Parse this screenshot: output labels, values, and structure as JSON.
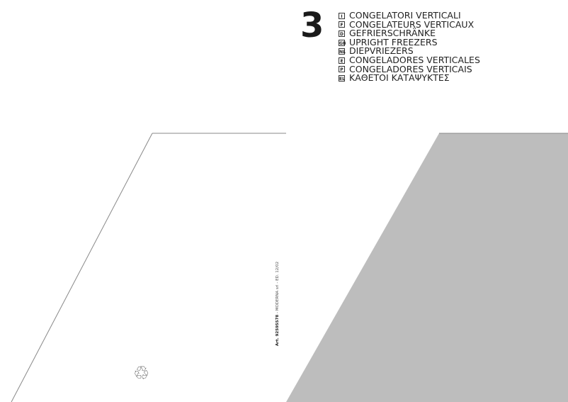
{
  "cover": {
    "number": "3",
    "titles": [
      {
        "code": "I",
        "text": "CONGELATORI VERTICALI"
      },
      {
        "code": "F",
        "text": "CONGELATEURS VERTICAUX"
      },
      {
        "code": "D",
        "text": "GEFRIERSCHRÄNKE"
      },
      {
        "code": "GB",
        "text": "UPRIGHT FREEZERS"
      },
      {
        "code": "NL",
        "text": "DIEPVRIEZERS"
      },
      {
        "code": "E",
        "text": "CONGELADORES VERTICALES"
      },
      {
        "code": "P",
        "text": "CONGELADORES VERTICAIS"
      },
      {
        "code": "EL",
        "text": "ΚΑΘΕΤΟΙ ΚΑΤΑΨΥΚΤΕΣ"
      }
    ],
    "article": "Art. 92595578",
    "publisher": " - MODERNA srl - ED. 12/02",
    "recycle_icon": "recycle-icon",
    "shape_color": "#bdbdbd"
  }
}
